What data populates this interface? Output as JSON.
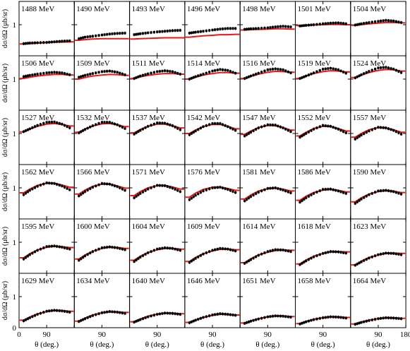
{
  "figure": {
    "ylabel": "dσ/dΩ (μb/sr)",
    "xlabel": "θ (deg.)",
    "y_ticks": [
      "1",
      "0"
    ],
    "x_ticks": [
      "0",
      "90",
      "180"
    ]
  },
  "chart_data": {
    "type": "scatter",
    "layout": {
      "rows": 6,
      "cols": 7
    },
    "xlim": [
      0,
      180
    ],
    "ylim": [
      0,
      1.75
    ],
    "x_ticks": [
      0,
      90,
      180
    ],
    "y_ticks": [
      0,
      1
    ],
    "xlabel": "θ (deg.)",
    "ylabel": "dσ/dΩ (μb/sr)",
    "series_types": {
      "data": "points with error bars (black)",
      "model": "curve (red)"
    },
    "panels": [
      {
        "label": "1488 MeV",
        "data_y": [
          0.39,
          0.41,
          0.42,
          0.43,
          0.45,
          0.47,
          0.48
        ],
        "model_y": [
          0.38,
          0.39,
          0.41,
          0.43,
          0.44,
          0.44,
          0.45
        ]
      },
      {
        "label": "1490 MeV",
        "data_y": [
          0.55,
          0.6,
          0.63,
          0.67,
          0.7,
          0.72,
          0.73
        ],
        "model_y": [
          0.5,
          0.52,
          0.54,
          0.55,
          0.55,
          0.55,
          0.55
        ]
      },
      {
        "label": "1493 MeV",
        "data_y": [
          0.68,
          0.71,
          0.74,
          0.77,
          0.79,
          0.81,
          0.82
        ],
        "model_y": [
          0.54,
          0.55,
          0.56,
          0.57,
          0.58,
          0.58,
          0.58
        ]
      },
      {
        "label": "1496 MeV",
        "data_y": [
          0.73,
          0.76,
          0.79,
          0.83,
          0.86,
          0.88,
          0.88
        ],
        "model_y": [
          0.6,
          0.62,
          0.64,
          0.66,
          0.68,
          0.68,
          0.69
        ]
      },
      {
        "label": "1498 MeV",
        "data_y": [
          0.85,
          0.87,
          0.88,
          0.9,
          0.93,
          0.95,
          0.93
        ],
        "model_y": [
          0.83,
          0.84,
          0.85,
          0.86,
          0.87,
          0.87,
          0.86
        ]
      },
      {
        "label": "1501 MeV",
        "data_y": [
          0.96,
          0.98,
          1,
          1.03,
          1.05,
          1.06,
          1.03
        ],
        "model_y": [
          0.97,
          0.98,
          0.99,
          1.0,
          1.01,
          1.01,
          1.0
        ]
      },
      {
        "label": "1504 MeV",
        "data_y": [
          0.99,
          1.03,
          1.07,
          1.11,
          1.14,
          1.12,
          1.07
        ],
        "model_y": [
          0.98,
          1.0,
          1.03,
          1.05,
          1.07,
          1.07,
          1.06
        ]
      },
      {
        "label": "1506 MeV",
        "data_y": [
          1.08,
          1.12,
          1.16,
          1.2,
          1.22,
          1.2,
          1.14
        ],
        "model_y": [
          1.02,
          1.06,
          1.1,
          1.13,
          1.15,
          1.15,
          1.13
        ]
      },
      {
        "label": "1509 MeV",
        "data_y": [
          1.06,
          1.12,
          1.18,
          1.24,
          1.26,
          1.22,
          1.14
        ],
        "model_y": [
          1.0,
          1.05,
          1.1,
          1.13,
          1.15,
          1.14,
          1.12
        ]
      },
      {
        "label": "1511 MeV",
        "data_y": [
          1.02,
          1.1,
          1.17,
          1.24,
          1.27,
          1.24,
          1.16
        ],
        "model_y": [
          1.02,
          1.07,
          1.12,
          1.16,
          1.18,
          1.18,
          1.16
        ]
      },
      {
        "label": "1514 MeV",
        "data_y": [
          1.0,
          1.08,
          1.16,
          1.26,
          1.31,
          1.28,
          1.19
        ],
        "model_y": [
          1.0,
          1.06,
          1.13,
          1.18,
          1.21,
          1.21,
          1.19
        ]
      },
      {
        "label": "1516 MeV",
        "data_y": [
          1.02,
          1.1,
          1.19,
          1.3,
          1.33,
          1.3,
          1.2
        ],
        "model_y": [
          1.02,
          1.09,
          1.16,
          1.22,
          1.25,
          1.24,
          1.22
        ]
      },
      {
        "label": "1519 MeV",
        "data_y": [
          1.02,
          1.1,
          1.2,
          1.32,
          1.35,
          1.3,
          1.19
        ],
        "model_y": [
          1.02,
          1.1,
          1.18,
          1.24,
          1.27,
          1.26,
          1.23
        ]
      },
      {
        "label": "1524 MeV",
        "data_y": [
          1.04,
          1.14,
          1.25,
          1.36,
          1.38,
          1.32,
          1.21
        ],
        "model_y": [
          1.05,
          1.13,
          1.21,
          1.28,
          1.31,
          1.3,
          1.26
        ]
      },
      {
        "label": "1527 MeV",
        "data_y": [
          1.06,
          1.15,
          1.26,
          1.36,
          1.37,
          1.3,
          1.18
        ],
        "model_y": [
          1.05,
          1.14,
          1.23,
          1.3,
          1.32,
          1.29,
          1.24
        ]
      },
      {
        "label": "1532 MeV",
        "data_y": [
          1.02,
          1.13,
          1.25,
          1.36,
          1.36,
          1.28,
          1.16
        ],
        "model_y": [
          1.04,
          1.14,
          1.24,
          1.31,
          1.32,
          1.28,
          1.22
        ]
      },
      {
        "label": "1537 MeV",
        "data_y": [
          0.98,
          1.1,
          1.23,
          1.34,
          1.33,
          1.25,
          1.12
        ],
        "model_y": [
          1.02,
          1.13,
          1.23,
          1.3,
          1.3,
          1.25,
          1.18
        ]
      },
      {
        "label": "1542 MeV",
        "data_y": [
          0.96,
          1.08,
          1.22,
          1.32,
          1.32,
          1.22,
          1.1
        ],
        "model_y": [
          1.0,
          1.11,
          1.22,
          1.29,
          1.29,
          1.23,
          1.15
        ]
      },
      {
        "label": "1547 MeV",
        "data_y": [
          0.92,
          1.04,
          1.18,
          1.28,
          1.27,
          1.18,
          1.06
        ],
        "model_y": [
          0.97,
          1.08,
          1.19,
          1.26,
          1.25,
          1.19,
          1.11
        ]
      },
      {
        "label": "1552 MeV",
        "data_y": [
          0.88,
          1.0,
          1.14,
          1.26,
          1.23,
          1.14,
          1.02
        ],
        "model_y": [
          0.92,
          1.04,
          1.16,
          1.23,
          1.22,
          1.16,
          1.08
        ]
      },
      {
        "label": "1557 MeV",
        "data_y": [
          0.82,
          0.95,
          1.08,
          1.2,
          1.18,
          1.1,
          0.98
        ],
        "model_y": [
          0.88,
          1.0,
          1.12,
          1.19,
          1.18,
          1.12,
          1.04
        ]
      },
      {
        "label": "1562 MeV",
        "data_y": [
          0.78,
          0.92,
          1.05,
          1.16,
          1.14,
          1.06,
          0.94
        ],
        "model_y": [
          0.84,
          0.96,
          1.08,
          1.15,
          1.15,
          1.09,
          1.02
        ]
      },
      {
        "label": "1566 MeV",
        "data_y": [
          0.74,
          0.88,
          1.02,
          1.14,
          1.12,
          1.04,
          0.92
        ],
        "model_y": [
          0.8,
          0.93,
          1.05,
          1.12,
          1.12,
          1.06,
          0.99
        ]
      },
      {
        "label": "1571 MeV",
        "data_y": [
          0.68,
          0.82,
          0.96,
          1.08,
          1.07,
          0.99,
          0.88
        ],
        "model_y": [
          0.75,
          0.88,
          1.0,
          1.07,
          1.08,
          1.03,
          0.96
        ]
      },
      {
        "label": "1576 MeV",
        "data_y": [
          0.62,
          0.76,
          0.9,
          1.0,
          1.02,
          0.95,
          0.85
        ],
        "model_y": [
          0.7,
          0.83,
          0.95,
          1.02,
          1.03,
          0.98,
          0.92
        ]
      },
      {
        "label": "1581 MeV",
        "data_y": [
          0.58,
          0.72,
          0.86,
          0.98,
          1.0,
          0.93,
          0.84
        ],
        "model_y": [
          0.64,
          0.77,
          0.9,
          0.97,
          0.99,
          0.96,
          0.9
        ]
      },
      {
        "label": "1586 MeV",
        "data_y": [
          0.54,
          0.68,
          0.82,
          0.95,
          0.96,
          0.9,
          0.82
        ],
        "model_y": [
          0.6,
          0.73,
          0.85,
          0.93,
          0.95,
          0.92,
          0.87
        ]
      },
      {
        "label": "1590 MeV",
        "data_y": [
          0.5,
          0.64,
          0.78,
          0.9,
          0.92,
          0.88,
          0.8
        ],
        "model_y": [
          0.55,
          0.68,
          0.8,
          0.88,
          0.91,
          0.89,
          0.85
        ]
      },
      {
        "label": "1595 MeV",
        "data_y": [
          0.46,
          0.6,
          0.74,
          0.86,
          0.88,
          0.84,
          0.78
        ],
        "model_y": [
          0.5,
          0.63,
          0.75,
          0.84,
          0.87,
          0.86,
          0.83
        ]
      },
      {
        "label": "1600 MeV",
        "data_y": [
          0.42,
          0.56,
          0.7,
          0.82,
          0.85,
          0.82,
          0.76
        ],
        "model_y": [
          0.46,
          0.59,
          0.71,
          0.8,
          0.84,
          0.83,
          0.8
        ]
      },
      {
        "label": "1604 MeV",
        "data_y": [
          0.38,
          0.52,
          0.66,
          0.78,
          0.82,
          0.8,
          0.74
        ],
        "model_y": [
          0.42,
          0.55,
          0.67,
          0.76,
          0.8,
          0.8,
          0.78
        ]
      },
      {
        "label": "1609 MeV",
        "data_y": [
          0.35,
          0.48,
          0.62,
          0.74,
          0.8,
          0.78,
          0.72
        ],
        "model_y": [
          0.38,
          0.51,
          0.63,
          0.72,
          0.77,
          0.78,
          0.76
        ]
      },
      {
        "label": "1614 MeV",
        "data_y": [
          0.32,
          0.44,
          0.58,
          0.7,
          0.76,
          0.75,
          0.7
        ],
        "model_y": [
          0.34,
          0.47,
          0.59,
          0.68,
          0.73,
          0.75,
          0.74
        ]
      },
      {
        "label": "1618 MeV",
        "data_y": [
          0.28,
          0.4,
          0.53,
          0.64,
          0.7,
          0.69,
          0.65
        ],
        "model_y": [
          0.3,
          0.43,
          0.55,
          0.64,
          0.69,
          0.7,
          0.69
        ]
      },
      {
        "label": "1623 MeV",
        "data_y": [
          0.26,
          0.37,
          0.49,
          0.6,
          0.65,
          0.64,
          0.6
        ],
        "model_y": [
          0.27,
          0.39,
          0.51,
          0.59,
          0.64,
          0.65,
          0.64
        ]
      },
      {
        "label": "1629 MeV",
        "data_y": [
          0.22,
          0.32,
          0.43,
          0.53,
          0.56,
          0.54,
          0.5
        ],
        "model_y": [
          0.24,
          0.34,
          0.44,
          0.52,
          0.55,
          0.55,
          0.53
        ]
      },
      {
        "label": "1634 MeV",
        "data_y": [
          0.2,
          0.29,
          0.39,
          0.48,
          0.52,
          0.5,
          0.46
        ],
        "model_y": [
          0.21,
          0.31,
          0.41,
          0.48,
          0.51,
          0.51,
          0.49
        ]
      },
      {
        "label": "1640 MeV",
        "data_y": [
          0.18,
          0.26,
          0.35,
          0.43,
          0.47,
          0.46,
          0.43
        ],
        "model_y": [
          0.19,
          0.28,
          0.37,
          0.44,
          0.47,
          0.47,
          0.45
        ]
      },
      {
        "label": "1646 MeV",
        "data_y": [
          0.16,
          0.24,
          0.33,
          0.41,
          0.45,
          0.43,
          0.4
        ],
        "model_y": [
          0.17,
          0.25,
          0.33,
          0.4,
          0.43,
          0.43,
          0.41
        ]
      },
      {
        "label": "1651 MeV",
        "data_y": [
          0.14,
          0.21,
          0.28,
          0.35,
          0.38,
          0.37,
          0.34
        ],
        "model_y": [
          0.15,
          0.22,
          0.29,
          0.35,
          0.38,
          0.38,
          0.36
        ]
      },
      {
        "label": "1658 MeV",
        "data_y": [
          0.12,
          0.19,
          0.26,
          0.32,
          0.35,
          0.34,
          0.31
        ],
        "model_y": [
          0.13,
          0.2,
          0.27,
          0.32,
          0.35,
          0.35,
          0.33
        ]
      },
      {
        "label": "1664 MeV",
        "data_y": [
          0.11,
          0.17,
          0.23,
          0.29,
          0.32,
          0.31,
          0.29
        ],
        "model_y": [
          0.12,
          0.18,
          0.24,
          0.29,
          0.32,
          0.32,
          0.3
        ]
      }
    ],
    "angles": [
      15,
      35,
      60,
      90,
      115,
      140,
      165
    ]
  }
}
